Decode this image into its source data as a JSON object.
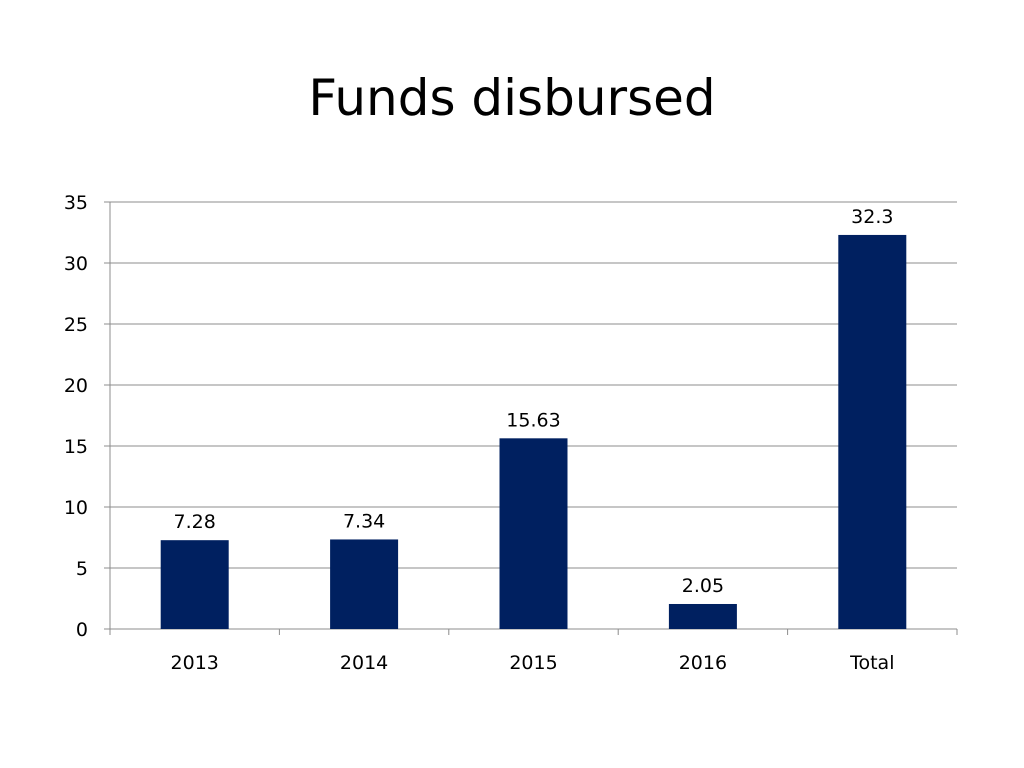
{
  "title": "Funds disbursed",
  "chart_data": {
    "type": "bar",
    "categories": [
      "2013",
      "2014",
      "2015",
      "2016",
      "Total"
    ],
    "values": [
      7.28,
      7.34,
      15.63,
      2.05,
      32.3
    ],
    "data_labels": [
      "7.28",
      "7.34",
      "15.63",
      "2.05",
      "32.3"
    ],
    "yticks": [
      "0",
      "5",
      "10",
      "15",
      "20",
      "25",
      "30",
      "35"
    ],
    "ylim": [
      0,
      35
    ],
    "ytick_step": 5,
    "grid": true,
    "legend": "none",
    "bar_color": "#002060",
    "grid_color": "#8c8c8c",
    "axis_color": "#8c8c8c"
  }
}
